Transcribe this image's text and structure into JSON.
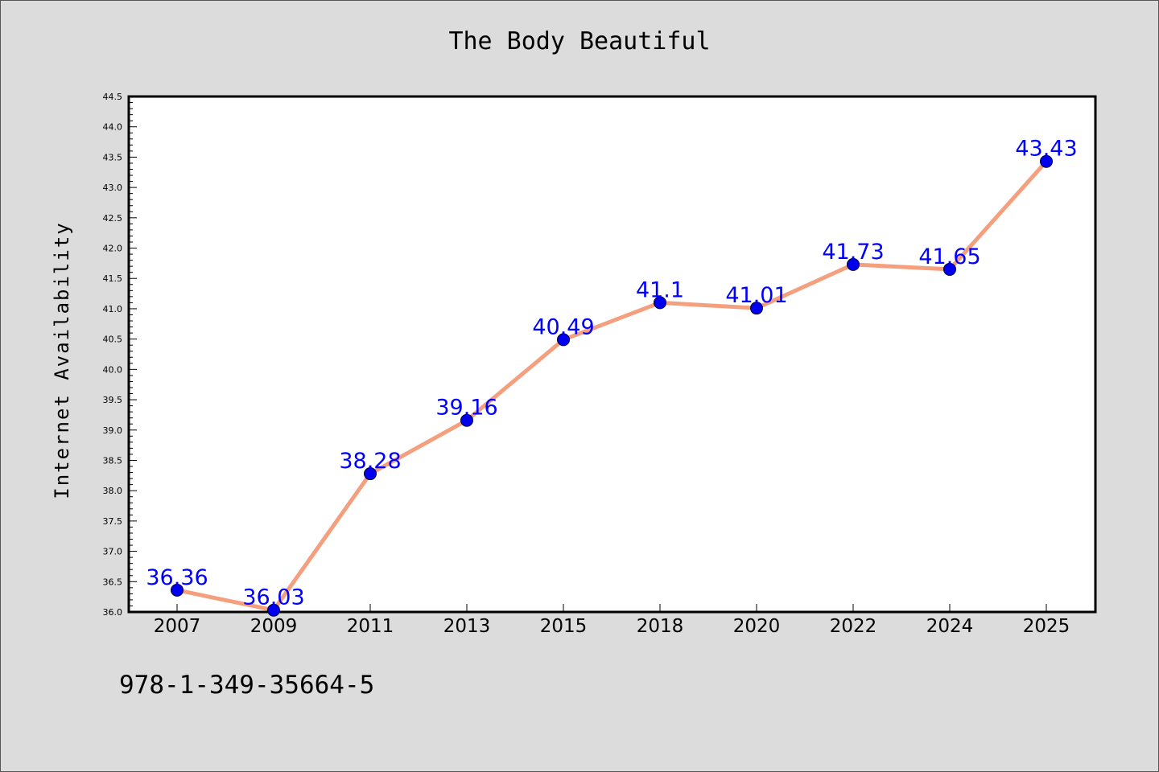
{
  "chart_data": {
    "type": "line",
    "title": "The Body Beautiful",
    "xlabel": "",
    "ylabel": "Internet Availability",
    "categories": [
      "2007",
      "2009",
      "2011",
      "2013",
      "2015",
      "2018",
      "2020",
      "2022",
      "2024",
      "2025"
    ],
    "series": [
      {
        "values": [
          36.36,
          36.03,
          38.28,
          39.16,
          40.49,
          41.1,
          41.01,
          41.73,
          41.65,
          43.43
        ]
      }
    ],
    "data_labels": [
      "36.36",
      "36.03",
      "38.28",
      "39.16",
      "40.49",
      "41.1",
      "41.01",
      "41.73",
      "41.65",
      "43.43"
    ],
    "ylim": [
      36.0,
      44.5
    ],
    "y_ticks": [
      "36.0",
      "36.5",
      "37.0",
      "37.5",
      "38.0",
      "38.5",
      "39.0",
      "39.5",
      "40.0",
      "40.5",
      "41.0",
      "41.5",
      "42.0",
      "42.5",
      "43.0",
      "43.5",
      "44.0",
      "44.5"
    ],
    "grid": false,
    "line_color": "#f4a07e",
    "marker_color": "#0000ee",
    "label_color": "#0000ff"
  },
  "footer": {
    "isbn": "978-1-349-35664-5"
  }
}
